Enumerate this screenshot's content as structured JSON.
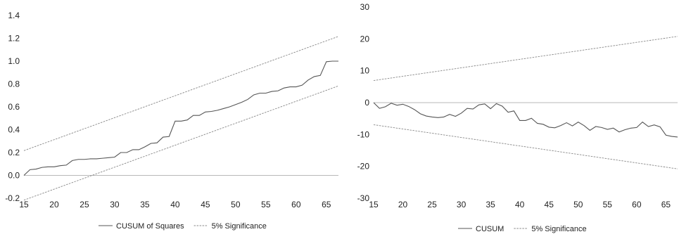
{
  "chart_data": [
    {
      "type": "line",
      "x": [
        15,
        16,
        17,
        18,
        19,
        20,
        21,
        22,
        23,
        24,
        25,
        26,
        27,
        28,
        29,
        30,
        31,
        32,
        33,
        34,
        35,
        36,
        37,
        38,
        39,
        40,
        41,
        42,
        43,
        44,
        45,
        46,
        47,
        48,
        49,
        50,
        51,
        52,
        53,
        54,
        55,
        56,
        57,
        58,
        59,
        60,
        61,
        62,
        63,
        64,
        65,
        66,
        67
      ],
      "series": [
        {
          "name": "CUSUM of Squares",
          "values": [
            0.0,
            0.05,
            0.055,
            0.07,
            0.075,
            0.075,
            0.085,
            0.09,
            0.13,
            0.14,
            0.14,
            0.145,
            0.145,
            0.15,
            0.155,
            0.16,
            0.2,
            0.2,
            0.225,
            0.225,
            0.25,
            0.28,
            0.285,
            0.335,
            0.34,
            0.475,
            0.475,
            0.485,
            0.525,
            0.525,
            0.555,
            0.56,
            0.57,
            0.585,
            0.6,
            0.62,
            0.64,
            0.665,
            0.705,
            0.72,
            0.72,
            0.735,
            0.74,
            0.765,
            0.775,
            0.775,
            0.79,
            0.835,
            0.865,
            0.875,
            0.995,
            1.0,
            1.0
          ],
          "color": "#555555",
          "style": "solid"
        },
        {
          "name": "5% Significance",
          "values": [
            0.2167,
            0.2359,
            0.2552,
            0.2744,
            0.2936,
            0.3128,
            0.3321,
            0.3513,
            0.3705,
            0.3898,
            0.409,
            0.4282,
            0.4475,
            0.4667,
            0.4859,
            0.5051,
            0.5244,
            0.5436,
            0.5628,
            0.5821,
            0.6013,
            0.6205,
            0.6398,
            0.659,
            0.6782,
            0.6974,
            0.7167,
            0.7359,
            0.7551,
            0.7744,
            0.7936,
            0.8128,
            0.8321,
            0.8513,
            0.8705,
            0.8897,
            0.909,
            0.9282,
            0.9474,
            0.9667,
            0.9859,
            1.0051,
            1.0244,
            1.0436,
            1.0628,
            1.082,
            1.1013,
            1.1205,
            1.1397,
            1.159,
            1.1782,
            1.1974,
            1.2167
          ],
          "color": "#888888",
          "style": "dashed"
        },
        {
          "name": "5% Significance",
          "values": [
            -0.2167,
            -0.1974,
            -0.1782,
            -0.159,
            -0.1397,
            -0.1205,
            -0.1013,
            -0.082,
            -0.0628,
            -0.0436,
            -0.0244,
            -0.0051,
            0.0141,
            0.0333,
            0.0526,
            0.0718,
            0.091,
            0.1103,
            0.1295,
            0.1487,
            0.1679,
            0.1872,
            0.2064,
            0.2256,
            0.2449,
            0.2641,
            0.2833,
            0.3026,
            0.3218,
            0.341,
            0.3603,
            0.3795,
            0.3987,
            0.4179,
            0.4372,
            0.4564,
            0.4756,
            0.4949,
            0.5141,
            0.5333,
            0.5526,
            0.5718,
            0.591,
            0.6103,
            0.6295,
            0.6487,
            0.6679,
            0.6872,
            0.7064,
            0.7256,
            0.7449,
            0.7641,
            0.7833
          ],
          "color": "#888888",
          "style": "dashed"
        }
      ],
      "xlim": [
        15,
        67
      ],
      "ylim": [
        -0.2,
        1.4
      ],
      "xticks": [
        15,
        20,
        25,
        30,
        35,
        40,
        45,
        50,
        55,
        60,
        65
      ],
      "yticks": [
        -0.2,
        0.0,
        0.2,
        0.4,
        0.6,
        0.8,
        1.0,
        1.2,
        1.4
      ],
      "ytick_labels": [
        "-0.2",
        "0.0",
        "0.2",
        "0.4",
        "0.6",
        "0.8",
        "1.0",
        "1.2",
        "1.4"
      ],
      "zero_line": true,
      "grid": false,
      "legend_position": "bottom",
      "legend": [
        "CUSUM of Squares",
        "5% Significance"
      ]
    },
    {
      "type": "line",
      "x": [
        15,
        16,
        17,
        18,
        19,
        20,
        21,
        22,
        23,
        24,
        25,
        26,
        27,
        28,
        29,
        30,
        31,
        32,
        33,
        34,
        35,
        36,
        37,
        38,
        39,
        40,
        41,
        42,
        43,
        44,
        45,
        46,
        47,
        48,
        49,
        50,
        51,
        52,
        53,
        54,
        55,
        56,
        57,
        58,
        59,
        60,
        61,
        62,
        63,
        64,
        65,
        66,
        67
      ],
      "series": [
        {
          "name": "CUSUM",
          "values": [
            0,
            -1.8,
            -1.3,
            -0.2,
            -0.8,
            -0.5,
            -1.2,
            -2.2,
            -3.5,
            -4.2,
            -4.5,
            -4.7,
            -4.5,
            -3.7,
            -4.3,
            -3.3,
            -1.8,
            -2.0,
            -0.7,
            -0.4,
            -1.9,
            -0.3,
            -1.1,
            -3.0,
            -2.6,
            -5.6,
            -5.6,
            -4.9,
            -6.5,
            -6.8,
            -7.7,
            -7.9,
            -7.2,
            -6.3,
            -7.3,
            -6.1,
            -7.2,
            -8.7,
            -7.5,
            -7.8,
            -8.4,
            -8.0,
            -9.2,
            -8.5,
            -8.0,
            -7.8,
            -6.1,
            -7.5,
            -7.0,
            -7.6,
            -10.2,
            -10.6,
            -10.8
          ],
          "color": "#555555",
          "style": "solid"
        },
        {
          "name": "5% Significance",
          "values": [
            6.93,
            7.2,
            7.47,
            7.73,
            8.0,
            8.27,
            8.53,
            8.8,
            9.06,
            9.33,
            9.6,
            9.86,
            10.13,
            10.4,
            10.66,
            10.93,
            11.2,
            11.46,
            11.73,
            11.99,
            12.26,
            12.53,
            12.79,
            13.06,
            13.33,
            13.59,
            13.86,
            14.12,
            14.39,
            14.66,
            14.92,
            15.19,
            15.46,
            15.72,
            15.99,
            16.25,
            16.52,
            16.79,
            17.05,
            17.32,
            17.59,
            17.85,
            18.12,
            18.38,
            18.65,
            18.92,
            19.18,
            19.45,
            19.72,
            19.98,
            20.25,
            20.52,
            20.78
          ],
          "color": "#888888",
          "style": "dashed"
        },
        {
          "name": "5% Significance",
          "values": [
            -6.93,
            -7.2,
            -7.47,
            -7.73,
            -8.0,
            -8.27,
            -8.53,
            -8.8,
            -9.06,
            -9.33,
            -9.6,
            -9.86,
            -10.13,
            -10.4,
            -10.66,
            -10.93,
            -11.2,
            -11.46,
            -11.73,
            -11.99,
            -12.26,
            -12.53,
            -12.79,
            -13.06,
            -13.33,
            -13.59,
            -13.86,
            -14.12,
            -14.39,
            -14.66,
            -14.92,
            -15.19,
            -15.46,
            -15.72,
            -15.99,
            -16.25,
            -16.52,
            -16.79,
            -17.05,
            -17.32,
            -17.59,
            -17.85,
            -18.12,
            -18.38,
            -18.65,
            -18.92,
            -19.18,
            -19.45,
            -19.72,
            -19.98,
            -20.25,
            -20.52,
            -20.78
          ],
          "color": "#888888",
          "style": "dashed"
        }
      ],
      "xlim": [
        15,
        67
      ],
      "ylim": [
        -30,
        30
      ],
      "xticks": [
        15,
        20,
        25,
        30,
        35,
        40,
        45,
        50,
        55,
        60,
        65
      ],
      "yticks": [
        -30,
        -20,
        -10,
        0,
        10,
        20,
        30
      ],
      "ytick_labels": [
        "-30",
        "-20",
        "-10",
        "0",
        "10",
        "20",
        "30"
      ],
      "zero_line": true,
      "grid": false,
      "legend_position": "bottom",
      "legend": [
        "CUSUM",
        "5% Significance"
      ]
    }
  ]
}
